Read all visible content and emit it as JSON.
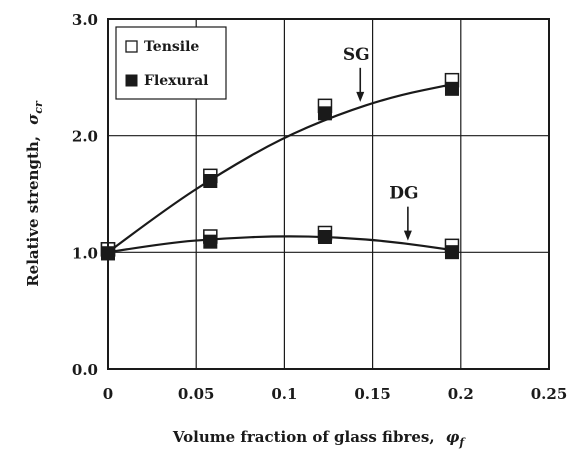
{
  "chart_data": {
    "type": "scatter",
    "xlabel": "Volume fraction of glass fibres,",
    "xlabel_symbol": "φ",
    "xlabel_subscript": "f",
    "ylabel": "Relative strength,",
    "ylabel_symbol": "σ",
    "ylabel_subscript": "cr",
    "xlim": [
      0,
      0.25
    ],
    "ylim": [
      0.0,
      3.0
    ],
    "x_ticks": [
      "0",
      "0.05",
      "0.1",
      "0.15",
      "0.2",
      "0.25"
    ],
    "y_ticks": [
      "0.0",
      "1.0",
      "2.0",
      "3.0"
    ],
    "grid": true,
    "legend_position": "top-left",
    "series": [
      {
        "name": "Tensile",
        "group": "SG",
        "marker": "open-square",
        "x": [
          0,
          0.058,
          0.123,
          0.195
        ],
        "y": [
          1.0,
          1.63,
          2.23,
          2.45
        ]
      },
      {
        "name": "Flexural",
        "group": "SG",
        "marker": "filled-square",
        "x": [
          0,
          0.058,
          0.123,
          0.195
        ],
        "y": [
          1.0,
          1.62,
          2.2,
          2.41
        ]
      },
      {
        "name": "Tensile",
        "group": "DG",
        "marker": "open-square",
        "x": [
          0,
          0.058,
          0.123,
          0.195
        ],
        "y": [
          1.0,
          1.11,
          1.14,
          1.03
        ]
      },
      {
        "name": "Flexural",
        "group": "DG",
        "marker": "filled-square",
        "x": [
          0,
          0.058,
          0.123,
          0.195
        ],
        "y": [
          1.0,
          1.1,
          1.14,
          1.01
        ]
      }
    ],
    "fit_curves": [
      {
        "label": "SG",
        "x": [
          0,
          0.0325,
          0.065,
          0.0975,
          0.13,
          0.1625,
          0.195
        ],
        "y": [
          1.0,
          1.37,
          1.69,
          1.97,
          2.18,
          2.34,
          2.44
        ]
      },
      {
        "label": "DG",
        "x": [
          0,
          0.0325,
          0.065,
          0.0975,
          0.13,
          0.1625,
          0.195
        ],
        "y": [
          1.0,
          1.08,
          1.12,
          1.14,
          1.13,
          1.09,
          1.02
        ]
      }
    ],
    "annotations": [
      {
        "text": "SG",
        "arrow_to": [
          0.143,
          2.29
        ]
      },
      {
        "text": "DG",
        "arrow_to": [
          0.17,
          1.1
        ]
      }
    ],
    "colors": {
      "ink": "#1a1a1a",
      "grid": "#1a1a1a",
      "background": "#ffffff"
    }
  }
}
